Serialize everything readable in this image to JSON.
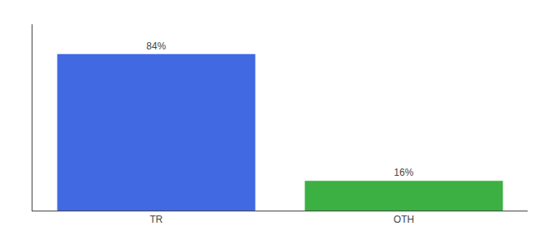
{
  "chart_data": {
    "type": "bar",
    "categories": [
      "TR",
      "OTH"
    ],
    "values": [
      84,
      16
    ],
    "value_labels": [
      "84%",
      "16%"
    ],
    "colors": [
      "#4169e1",
      "#3cb043"
    ],
    "ylim": [
      0,
      100
    ],
    "yticks": [],
    "grid": false,
    "data_labels": true,
    "tick_labels": "x"
  }
}
